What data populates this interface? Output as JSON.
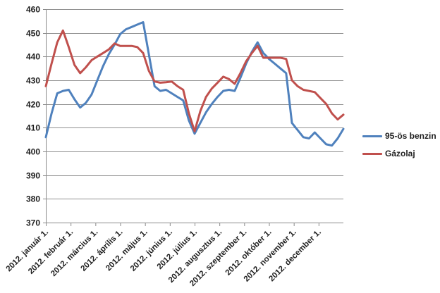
{
  "chart_data": {
    "type": "line",
    "title": "",
    "grid": true,
    "legend_position": "right",
    "x_axis": {
      "tick_labels": [
        "2012. január 1.",
        "2012. február 1.",
        "2012. március 1.",
        "2012. április 1.",
        "2012. május 1.",
        "2012. június 1.",
        "2012. július 1.",
        "2012. augusztus 1.",
        "2012. szeptember 1.",
        "2012. október 1.",
        "2012. november 1.",
        "2012. december 1."
      ]
    },
    "y_axis": {
      "range": [
        370,
        460
      ],
      "ticks": [
        370,
        380,
        390,
        400,
        410,
        420,
        430,
        440,
        450,
        460
      ]
    },
    "series": [
      {
        "name": "95-ös benzin",
        "color": "#4F81BD",
        "values": [
          406,
          416,
          424.5,
          425.5,
          426,
          422,
          418.5,
          420.5,
          424,
          430,
          436,
          441,
          445,
          449.5,
          451.5,
          452.5,
          453.5,
          454.5,
          441,
          427.5,
          425.5,
          426,
          424.5,
          423,
          421.5,
          413,
          407.5,
          412,
          416.5,
          420,
          423,
          425.5,
          426,
          425.5,
          431,
          437,
          442,
          446,
          441.5,
          439,
          437,
          435,
          433,
          412,
          409,
          406,
          405.5,
          408,
          405.5,
          403,
          402.5,
          405.5,
          409.5
        ]
      },
      {
        "name": "Gázolaj",
        "color": "#C0504D",
        "values": [
          427.5,
          437,
          446,
          451,
          444,
          436.5,
          433,
          435.5,
          438.5,
          440,
          441.5,
          443,
          445.5,
          444.5,
          444.5,
          444.5,
          444,
          441.5,
          434,
          429.5,
          429,
          429.2,
          429.5,
          427.5,
          426,
          416,
          408.5,
          417,
          423,
          426.5,
          429,
          431.5,
          430.5,
          428.5,
          433,
          438,
          441.5,
          444.5,
          439.5,
          439.5,
          439.5,
          439.5,
          439,
          430,
          427.5,
          426,
          425.5,
          425,
          422.5,
          420,
          416,
          413.5,
          415.5
        ]
      }
    ]
  },
  "style": {
    "grid_color": "#919191",
    "axis_color": "#8a8a8a",
    "text_color": "#1f1f1f",
    "background": "#ffffff"
  }
}
